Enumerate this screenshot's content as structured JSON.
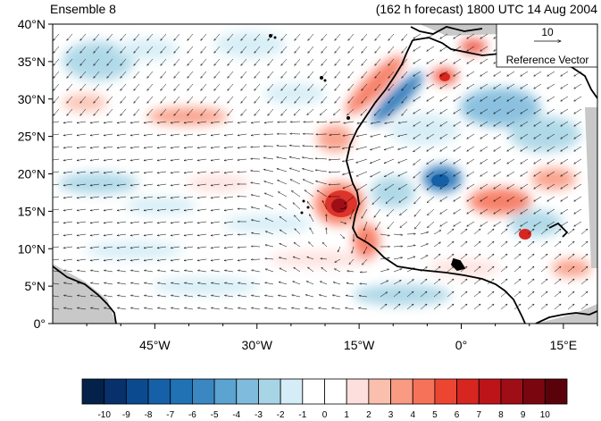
{
  "header": {
    "left_title": "Ensemble 8",
    "right_title": "(162 h forecast) 1800 UTC 14 Aug 2004"
  },
  "map": {
    "lon_range": [
      -60,
      20
    ],
    "lat_range": [
      0,
      40
    ],
    "y_ticks": [
      {
        "value": 40,
        "label": "40°N"
      },
      {
        "value": 35,
        "label": "35°N"
      },
      {
        "value": 30,
        "label": "30°N"
      },
      {
        "value": 25,
        "label": "25°N"
      },
      {
        "value": 20,
        "label": "20°N"
      },
      {
        "value": 15,
        "label": "15°N"
      },
      {
        "value": 10,
        "label": "10°N"
      },
      {
        "value": 5,
        "label": "5°N"
      },
      {
        "value": 0,
        "label": "0°"
      }
    ],
    "x_ticks": [
      {
        "value": -45,
        "label": "45°W"
      },
      {
        "value": -30,
        "label": "30°W"
      },
      {
        "value": -15,
        "label": "15°W"
      },
      {
        "value": 0,
        "label": "0°"
      },
      {
        "value": 15,
        "label": "15°E"
      }
    ],
    "reference_vector": {
      "magnitude": "10",
      "label": "Reference Vector"
    },
    "colors": {
      "land_mask": "#c8c8c8",
      "coast": "#000000",
      "arrow": "#000000"
    }
  },
  "colorbar": {
    "labels": [
      "-10",
      "-9",
      "-8",
      "-7",
      "-6",
      "-5",
      "-4",
      "-3",
      "-2",
      "-1",
      "0",
      "1",
      "2",
      "3",
      "4",
      "5",
      "6",
      "7",
      "8",
      "9",
      "10"
    ],
    "colors": [
      "#04214a",
      "#08306b",
      "#0b4a8f",
      "#1660a8",
      "#2171b5",
      "#3a87c2",
      "#5ba3d0",
      "#7fbbdc",
      "#a8d5e6",
      "#d4edf6",
      "#ffffff",
      "#ffffff",
      "#fde0dd",
      "#fbbfae",
      "#f99a82",
      "#f6735a",
      "#ec4632",
      "#d7261f",
      "#bd141a",
      "#9f0d16",
      "#7a0710",
      "#5a020a"
    ]
  }
}
